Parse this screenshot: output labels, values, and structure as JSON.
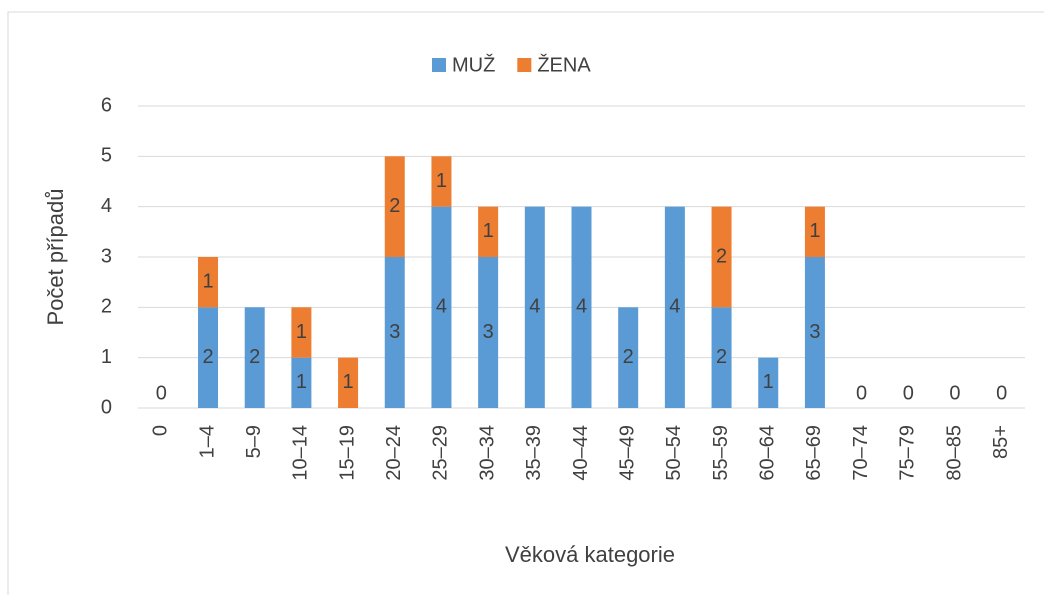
{
  "chart_data": {
    "type": "stacked_bar",
    "x_label": "Věková kategorie",
    "y_label": "Počet případů",
    "categories": [
      "0",
      "1–4",
      "5–9",
      "10–14",
      "15–19",
      "20–24",
      "25–29",
      "30–34",
      "35–39",
      "40–44",
      "45–49",
      "50–54",
      "55–59",
      "60–64",
      "65–69",
      "70–74",
      "75–79",
      "80–85",
      "85+"
    ],
    "series": [
      {
        "name": "MUŽ",
        "color": "#5b9bd5",
        "values": [
          0,
          2,
          2,
          1,
          0,
          3,
          4,
          3,
          4,
          4,
          2,
          4,
          2,
          1,
          3,
          0,
          0,
          0,
          0
        ]
      },
      {
        "name": "ŽENA",
        "color": "#ed7d31",
        "values": [
          0,
          1,
          0,
          1,
          1,
          2,
          1,
          1,
          0,
          0,
          0,
          0,
          2,
          0,
          1,
          0,
          0,
          0,
          0
        ]
      }
    ],
    "ylim": [
      0,
      6
    ],
    "yticks": [
      0,
      1,
      2,
      3,
      4,
      5,
      6
    ],
    "grid": true,
    "legend": "top"
  }
}
